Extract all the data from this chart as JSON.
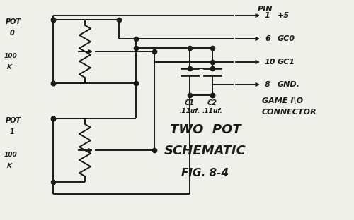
{
  "background_color": "#f0f0eb",
  "line_color": "#1a1a1a",
  "line_width": 1.4,
  "dot_size": 4.5,
  "title1": "TWO  POT",
  "title2": "SCHEMATIC",
  "subtitle": "FIG. 8-4",
  "pin_header": "PIN",
  "pins": [
    [
      "1",
      "+5"
    ],
    [
      "6",
      "GC0"
    ],
    [
      "10",
      "GC1"
    ],
    [
      "8",
      "GND."
    ]
  ],
  "connector": [
    "GAME I\\O",
    "CONNECTOR"
  ],
  "cap_names": [
    "C1",
    "C2"
  ],
  "cap_vals": [
    ".11uf.",
    ".11uf."
  ],
  "pot0_label": [
    "POT",
    "0",
    "100",
    "K"
  ],
  "pot1_label": [
    "POT",
    "1",
    "100",
    "K"
  ]
}
